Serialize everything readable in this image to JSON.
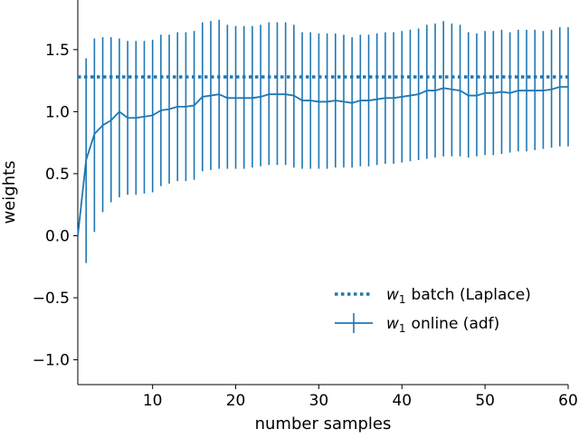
{
  "chart_data": {
    "type": "line",
    "title": "",
    "xlabel": "number samples",
    "ylabel": "weights",
    "xlim": [
      1,
      60
    ],
    "ylim": [
      -1.2,
      1.9
    ],
    "xticks": [
      10,
      20,
      30,
      40,
      50,
      60
    ],
    "yticks": [
      -1.0,
      -0.5,
      0.0,
      0.5,
      1.0,
      1.5
    ],
    "xtick_labels": [
      "10",
      "20",
      "30",
      "40",
      "50",
      "60"
    ],
    "ytick_labels": [
      "−1.0",
      "−0.5",
      "0.0",
      "0.5",
      "1.0",
      "1.5"
    ],
    "grid": false,
    "legend_position": "lower-right",
    "color": "#1f77b4",
    "series": [
      {
        "name": "batch (Laplace)",
        "legend_symbol": "w",
        "legend_subscript": "1",
        "style": "dotted",
        "x": [
          1,
          60
        ],
        "y": [
          1.28,
          1.28
        ]
      },
      {
        "name": "online (adf)",
        "legend_symbol": "w",
        "legend_subscript": "1",
        "style": "solid-errorbar",
        "x": [
          1,
          2,
          3,
          4,
          5,
          6,
          7,
          8,
          9,
          10,
          11,
          12,
          13,
          14,
          15,
          16,
          17,
          18,
          19,
          20,
          21,
          22,
          23,
          24,
          25,
          26,
          27,
          28,
          29,
          30,
          31,
          32,
          33,
          34,
          35,
          36,
          37,
          38,
          39,
          40,
          41,
          42,
          43,
          44,
          45,
          46,
          47,
          48,
          49,
          50,
          51,
          52,
          53,
          54,
          55,
          56,
          57,
          58,
          59,
          60
        ],
        "y": [
          0.0,
          0.61,
          0.82,
          0.89,
          0.93,
          1.0,
          0.95,
          0.95,
          0.96,
          0.97,
          1.01,
          1.02,
          1.04,
          1.04,
          1.05,
          1.12,
          1.13,
          1.14,
          1.11,
          1.11,
          1.11,
          1.11,
          1.12,
          1.14,
          1.14,
          1.14,
          1.13,
          1.09,
          1.09,
          1.08,
          1.08,
          1.09,
          1.08,
          1.07,
          1.09,
          1.09,
          1.1,
          1.11,
          1.11,
          1.12,
          1.13,
          1.14,
          1.17,
          1.17,
          1.19,
          1.18,
          1.17,
          1.13,
          1.13,
          1.15,
          1.15,
          1.16,
          1.15,
          1.17,
          1.17,
          1.17,
          1.17,
          1.18,
          1.2,
          1.2
        ],
        "lower": [
          0.0,
          -0.22,
          0.03,
          0.19,
          0.27,
          0.31,
          0.33,
          0.33,
          0.34,
          0.35,
          0.4,
          0.42,
          0.44,
          0.44,
          0.45,
          0.52,
          0.53,
          0.54,
          0.54,
          0.54,
          0.54,
          0.55,
          0.56,
          0.57,
          0.57,
          0.57,
          0.55,
          0.54,
          0.54,
          0.54,
          0.54,
          0.55,
          0.55,
          0.55,
          0.56,
          0.56,
          0.57,
          0.58,
          0.58,
          0.59,
          0.6,
          0.61,
          0.62,
          0.63,
          0.64,
          0.64,
          0.64,
          0.63,
          0.64,
          0.65,
          0.65,
          0.66,
          0.67,
          0.68,
          0.68,
          0.69,
          0.7,
          0.71,
          0.72,
          0.72
        ],
        "upper": [
          0.0,
          1.43,
          1.59,
          1.6,
          1.6,
          1.59,
          1.57,
          1.57,
          1.57,
          1.58,
          1.62,
          1.62,
          1.64,
          1.64,
          1.65,
          1.72,
          1.73,
          1.74,
          1.7,
          1.69,
          1.69,
          1.69,
          1.7,
          1.72,
          1.72,
          1.72,
          1.7,
          1.64,
          1.64,
          1.63,
          1.63,
          1.63,
          1.62,
          1.6,
          1.62,
          1.62,
          1.63,
          1.64,
          1.64,
          1.65,
          1.66,
          1.67,
          1.7,
          1.71,
          1.73,
          1.71,
          1.7,
          1.64,
          1.63,
          1.65,
          1.65,
          1.66,
          1.64,
          1.66,
          1.66,
          1.66,
          1.65,
          1.66,
          1.68,
          1.68
        ]
      }
    ]
  }
}
